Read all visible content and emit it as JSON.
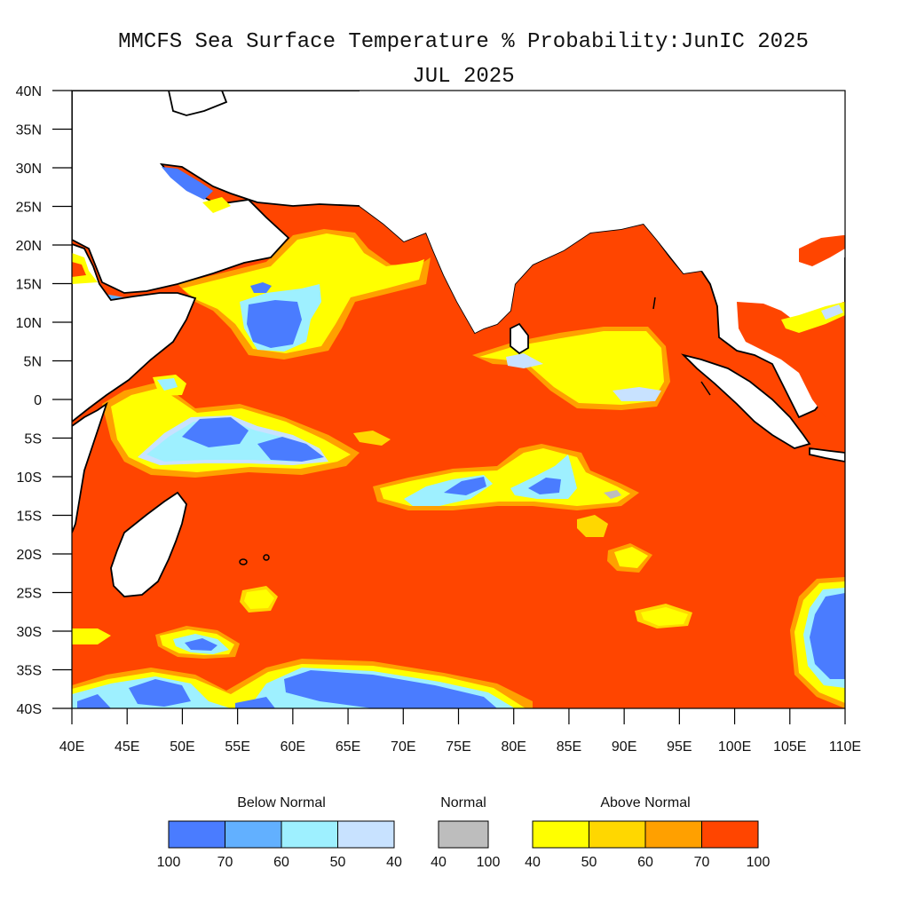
{
  "title": {
    "line1": "MMCFS Sea Surface Temperature % Probability:JunIC 2025",
    "line2": "JUL 2025"
  },
  "map": {
    "lon_range": [
      40,
      110
    ],
    "lat_range": [
      -40,
      40
    ],
    "lat_ticks": [
      "40N",
      "35N",
      "30N",
      "25N",
      "20N",
      "15N",
      "10N",
      "5N",
      "0",
      "5S",
      "10S",
      "15S",
      "20S",
      "25S",
      "30S",
      "35S",
      "40S"
    ],
    "lon_ticks": [
      "40E",
      "45E",
      "50E",
      "55E",
      "60E",
      "65E",
      "70E",
      "75E",
      "80E",
      "85E",
      "90E",
      "95E",
      "100E",
      "105E",
      "110E"
    ],
    "ocean_color": "#ff4500",
    "land_color": "#ffffff"
  },
  "legend": {
    "below": {
      "label": "Below Normal",
      "colors": [
        "#4a7cff",
        "#62b0ff",
        "#9ef0ff",
        "#c8e2ff"
      ],
      "ticks": [
        "100",
        "70",
        "60",
        "50",
        "40"
      ]
    },
    "normal": {
      "label": "Normal",
      "colors": [
        "#bdbdbd"
      ],
      "ticks": [
        "40",
        "100"
      ]
    },
    "above": {
      "label": "Above Normal",
      "colors": [
        "#ffff00",
        "#ffd700",
        "#ffa000",
        "#ff4500"
      ],
      "ticks": [
        "40",
        "50",
        "60",
        "70",
        "100"
      ]
    }
  }
}
